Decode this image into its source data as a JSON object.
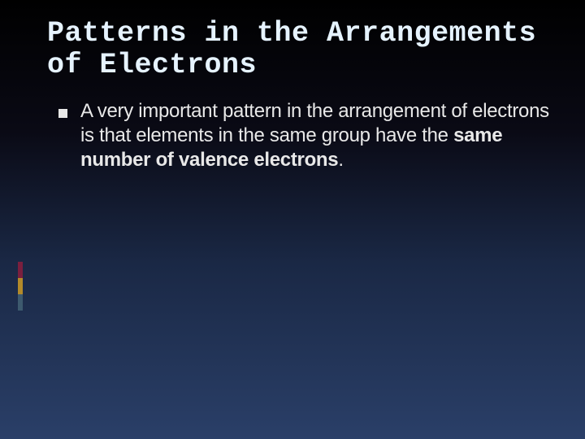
{
  "slide": {
    "title": "Patterns in the Arrangements of Electrons",
    "bullet": {
      "text_pre": "A very important pattern in the arrangement of electrons is that elements in the same group have the ",
      "text_bold": "same number of valence electrons",
      "text_post": "."
    }
  },
  "style": {
    "background_gradient": [
      "#000000",
      "#0a0a15",
      "#1a2845",
      "#2a3f68"
    ],
    "title_color": "#e6f3ff",
    "title_font": "Courier New / monospace",
    "title_fontsize": 35,
    "body_color": "#e8e8e8",
    "body_fontsize": 24,
    "bullet_marker_color": "#e8e8e8",
    "accent_bars": [
      {
        "color": "#7a1f3e"
      },
      {
        "color": "#b38a2a"
      },
      {
        "color": "#3d5a6e"
      }
    ]
  }
}
